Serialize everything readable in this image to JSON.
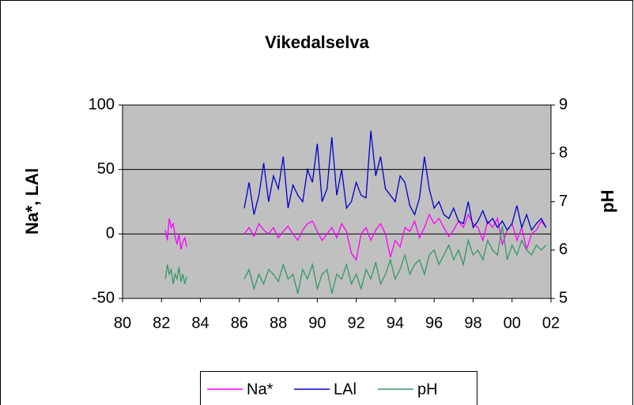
{
  "chart_data": {
    "type": "line",
    "title": "Vikedalselva",
    "y_label": "Na*, LAl",
    "y2_label": "pH",
    "x": [
      82.2,
      82.3,
      82.4,
      82.5,
      82.6,
      82.7,
      82.8,
      82.9,
      83.0,
      83.1,
      83.2,
      83.3,
      84.7,
      86.25,
      86.5,
      86.75,
      87,
      87.25,
      87.5,
      87.75,
      88,
      88.25,
      88.5,
      88.75,
      89,
      89.25,
      89.5,
      89.75,
      90,
      90.25,
      90.5,
      90.75,
      91,
      91.25,
      91.5,
      91.75,
      92,
      92.25,
      92.5,
      92.75,
      93,
      93.25,
      93.5,
      93.75,
      94,
      94.25,
      94.5,
      94.75,
      95,
      95.25,
      95.5,
      95.75,
      96,
      96.25,
      96.5,
      96.75,
      97,
      97.25,
      97.5,
      97.75,
      98,
      98.25,
      98.5,
      98.75,
      99,
      99.25,
      99.5,
      99.75,
      100,
      100.25,
      100.5,
      100.75,
      101,
      101.25,
      101.5,
      101.75
    ],
    "series": [
      {
        "name": "Na*",
        "color": "#ff00ff",
        "values": [
          3,
          -5,
          12,
          5,
          8,
          -2,
          -8,
          0,
          -12,
          -6,
          -3,
          -10,
          null,
          0,
          5,
          -2,
          8,
          3,
          0,
          5,
          -3,
          2,
          6,
          0,
          -5,
          3,
          8,
          10,
          2,
          -5,
          0,
          5,
          -3,
          8,
          2,
          -15,
          -20,
          0,
          5,
          -5,
          3,
          8,
          0,
          -18,
          -5,
          -10,
          5,
          2,
          10,
          -3,
          5,
          15,
          8,
          12,
          5,
          -2,
          3,
          10,
          5,
          15,
          8,
          5,
          -5,
          10,
          5,
          12,
          -8,
          3,
          8,
          -5,
          5,
          -12,
          0,
          3,
          10,
          5
        ]
      },
      {
        "name": "LAl",
        "color": "#0000cc",
        "values": [
          null,
          null,
          null,
          null,
          null,
          null,
          null,
          null,
          null,
          null,
          null,
          null,
          null,
          20,
          40,
          15,
          30,
          55,
          25,
          45,
          35,
          60,
          20,
          38,
          30,
          25,
          50,
          40,
          70,
          25,
          35,
          75,
          30,
          50,
          20,
          25,
          40,
          30,
          28,
          80,
          45,
          60,
          35,
          30,
          25,
          45,
          40,
          22,
          15,
          28,
          60,
          35,
          20,
          25,
          15,
          12,
          20,
          10,
          8,
          25,
          5,
          10,
          18,
          8,
          12,
          5,
          10,
          3,
          8,
          22,
          5,
          15,
          3,
          8,
          12,
          5
        ]
      },
      {
        "name": "pH",
        "color": "#339966",
        "axis": "y2",
        "values": [
          5.4,
          5.7,
          5.5,
          5.6,
          5.3,
          5.5,
          5.4,
          5.65,
          5.35,
          5.5,
          5.3,
          5.45,
          null,
          5.4,
          5.6,
          5.2,
          5.5,
          5.3,
          5.6,
          5.5,
          5.35,
          5.7,
          5.4,
          5.5,
          5.1,
          5.6,
          5.4,
          5.7,
          5.2,
          5.5,
          5.6,
          5.1,
          5.5,
          5.4,
          5.7,
          5.3,
          5.5,
          5.2,
          5.6,
          5.4,
          5.75,
          5.3,
          5.5,
          5.8,
          5.4,
          5.6,
          5.9,
          5.5,
          5.7,
          5.8,
          5.5,
          5.9,
          6.0,
          5.7,
          5.9,
          6.1,
          5.8,
          6.0,
          5.7,
          6.2,
          5.9,
          6.0,
          5.8,
          6.2,
          6.0,
          5.9,
          6.5,
          5.8,
          6.1,
          5.9,
          6.2,
          6.0,
          5.9,
          6.1,
          6.0,
          6.1
        ]
      }
    ],
    "xlim": [
      80,
      102
    ],
    "xticks": [
      80,
      82,
      84,
      86,
      88,
      90,
      92,
      94,
      96,
      98,
      {
        "value": 100,
        "label": "00"
      },
      {
        "value": 102,
        "label": "02"
      }
    ],
    "ylim": [
      -50,
      100
    ],
    "yticks": [
      -50,
      0,
      50,
      100
    ],
    "y2lim": [
      5,
      9
    ],
    "y2ticks": [
      5,
      6,
      7,
      8,
      9
    ],
    "grid": true,
    "legend": "bottom",
    "plot_background": "#c0c0c0"
  }
}
